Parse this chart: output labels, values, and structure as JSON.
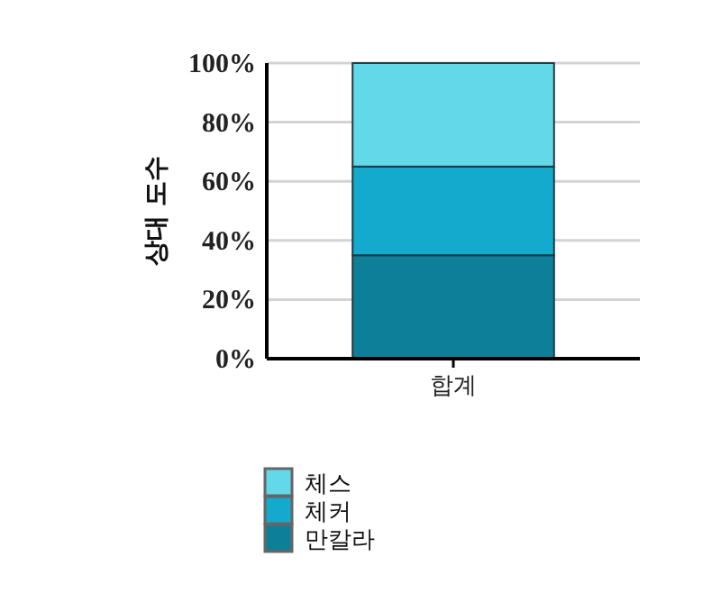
{
  "chart_data": {
    "type": "bar",
    "stacked": true,
    "ylabel": "상대 도수",
    "categories": [
      "합계"
    ],
    "series": [
      {
        "name": "만칼라",
        "color": "#0e7f98",
        "values": [
          35
        ]
      },
      {
        "name": "체커",
        "color": "#13aacd",
        "values": [
          30
        ]
      },
      {
        "name": "체스",
        "color": "#62d8e8",
        "values": [
          35
        ]
      }
    ],
    "ylim": [
      0,
      100
    ],
    "yticks": [
      {
        "value": 0,
        "label": "0%"
      },
      {
        "value": 20,
        "label": "20%"
      },
      {
        "value": 40,
        "label": "40%"
      },
      {
        "value": 60,
        "label": "60%"
      },
      {
        "value": 80,
        "label": "80%"
      },
      {
        "value": 100,
        "label": "100%"
      }
    ],
    "grid": "y",
    "legend": "bottom left"
  }
}
